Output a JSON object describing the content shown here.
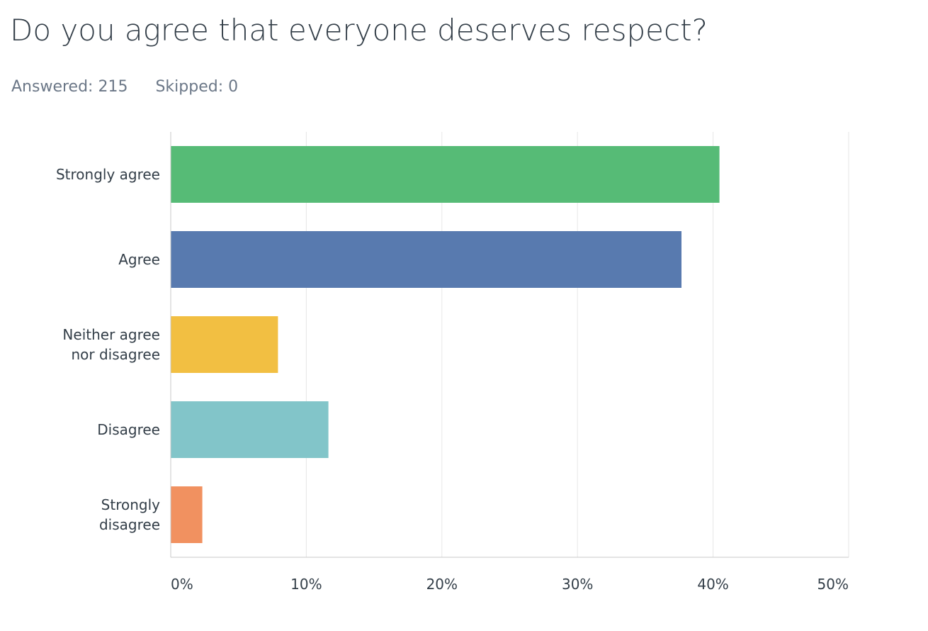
{
  "header": {
    "title": "Do you agree that everyone deserves respect?",
    "answered": "Answered: 215",
    "skipped": "Skipped: 0"
  },
  "chart_data": {
    "type": "bar",
    "orientation": "horizontal",
    "title": "Do you agree that everyone deserves respect?",
    "categories": [
      [
        "Strongly agree"
      ],
      [
        "Agree"
      ],
      [
        "Neither agree",
        "nor disagree"
      ],
      [
        "Disagree"
      ],
      [
        "Strongly",
        "disagree"
      ]
    ],
    "values": [
      40.47,
      37.67,
      7.91,
      11.63,
      2.33
    ],
    "colors": [
      "#56bb76",
      "#587aaf",
      "#f2bf42",
      "#82c5c9",
      "#f19160"
    ],
    "xlim": [
      0,
      50
    ],
    "xticks": [
      0,
      10,
      20,
      30,
      40,
      50
    ],
    "tick_suffix": "%",
    "grid": true,
    "xlabel": "",
    "ylabel": ""
  }
}
